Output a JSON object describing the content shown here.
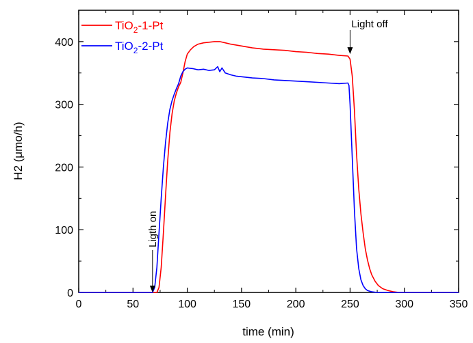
{
  "chart_data": {
    "type": "line",
    "xlabel": "time (min)",
    "ylabel": "H2 (μmo/h)",
    "xlim": [
      0,
      350
    ],
    "ylim": [
      0,
      450
    ],
    "xticks": [
      0,
      50,
      100,
      150,
      200,
      250,
      300,
      350
    ],
    "yticks": [
      0,
      100,
      200,
      300,
      400
    ],
    "grid": false,
    "legend": "top-left",
    "series": [
      {
        "name_base": "TiO",
        "name_sub": "2",
        "name_suffix": "-1-Pt",
        "color": "#ff0000",
        "x": [
          0,
          70,
          72,
          74,
          76,
          78,
          80,
          82,
          84,
          86,
          88,
          90,
          92,
          94,
          96,
          98,
          100,
          103,
          106,
          110,
          115,
          120,
          125,
          130,
          135,
          140,
          150,
          160,
          170,
          180,
          190,
          200,
          210,
          220,
          230,
          240,
          248,
          250,
          252,
          254,
          256,
          258,
          260,
          262,
          264,
          266,
          268,
          270,
          273,
          276,
          280,
          285,
          290,
          295,
          300,
          350
        ],
        "y": [
          0,
          0,
          0,
          8,
          40,
          95,
          155,
          210,
          255,
          285,
          305,
          318,
          328,
          335,
          350,
          368,
          380,
          387,
          392,
          396,
          398,
          399,
          400,
          400,
          398,
          396,
          393,
          390,
          388,
          387,
          386,
          384,
          383,
          381,
          380,
          378,
          377,
          372,
          345,
          290,
          220,
          165,
          125,
          95,
          70,
          52,
          38,
          28,
          18,
          11,
          6,
          3,
          1,
          0,
          0,
          0
        ]
      },
      {
        "name_base": "TiO",
        "name_sub": "2",
        "name_suffix": "-2-Pt",
        "color": "#0000ff",
        "x": [
          0,
          68,
          70,
          72,
          74,
          76,
          78,
          80,
          82,
          84,
          86,
          88,
          90,
          92,
          94,
          96,
          98,
          100,
          105,
          110,
          115,
          120,
          125,
          128,
          130,
          132,
          135,
          140,
          145,
          150,
          160,
          170,
          180,
          190,
          200,
          210,
          220,
          230,
          240,
          248,
          249,
          250,
          252,
          254,
          256,
          258,
          260,
          262,
          264,
          266,
          270,
          275,
          280,
          350
        ],
        "y": [
          0,
          0,
          8,
          40,
          95,
          150,
          200,
          240,
          270,
          292,
          306,
          316,
          325,
          333,
          345,
          352,
          356,
          358,
          357,
          355,
          356,
          354,
          355,
          360,
          352,
          358,
          350,
          347,
          345,
          344,
          342,
          341,
          339,
          338,
          337,
          336,
          335,
          334,
          333,
          334,
          330,
          300,
          215,
          130,
          70,
          38,
          20,
          11,
          6,
          3,
          1,
          0,
          0,
          0
        ]
      }
    ],
    "annotations": [
      {
        "text": "Ligth on",
        "x": 68,
        "y": 0
      },
      {
        "text": "Light off",
        "x": 250,
        "y": 378
      }
    ]
  }
}
